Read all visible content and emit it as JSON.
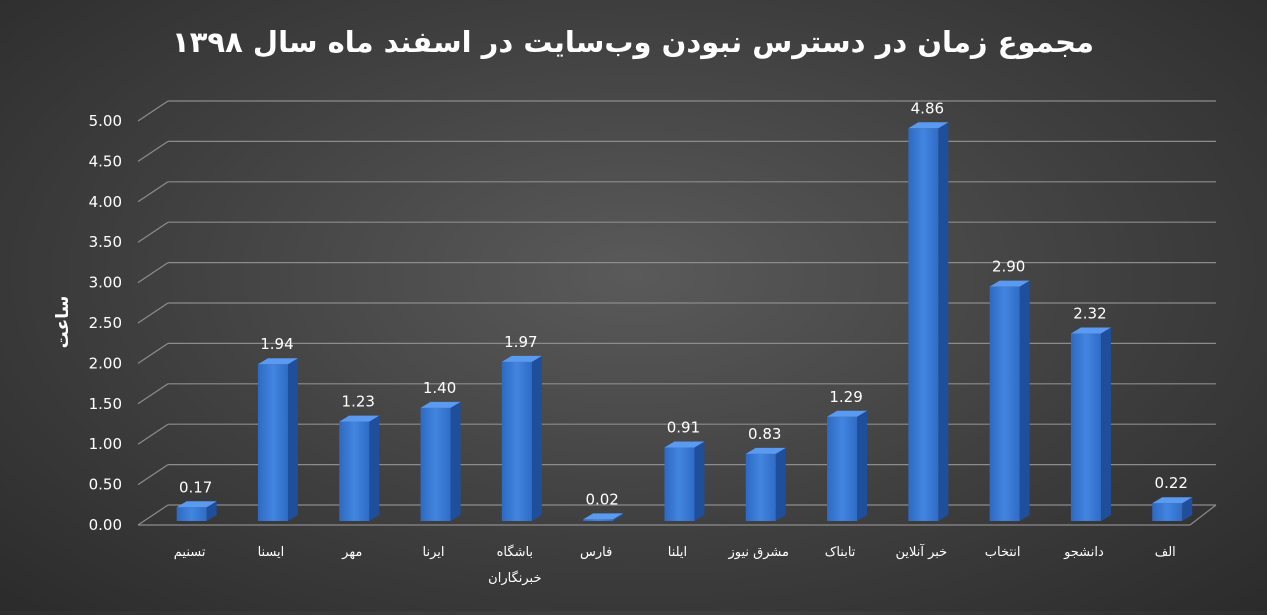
{
  "chart_data": {
    "type": "bar",
    "title": "مجموع زمان در دسترس نبودن وب‌سایت در اسفند ماه سال ۱۳۹۸",
    "ylabel": "ساعت",
    "xlabel": "",
    "ylim": [
      0,
      5
    ],
    "yticks": [
      "0.00",
      "0.50",
      "1.00",
      "1.50",
      "2.00",
      "2.50",
      "3.00",
      "3.50",
      "4.00",
      "4.50",
      "5.00"
    ],
    "grid": true,
    "style": "3d-column",
    "bar_color": "#3b7bd6",
    "categories": [
      [
        "تسنیم"
      ],
      [
        "ایسنا"
      ],
      [
        "مهر"
      ],
      [
        "ایرنا"
      ],
      [
        "باشگاه",
        "خبرنگاران"
      ],
      [
        "فارس"
      ],
      [
        "ایلنا"
      ],
      [
        "مشرق نیوز"
      ],
      [
        "تابناک"
      ],
      [
        "خبر آنلاین"
      ],
      [
        "انتخاب"
      ],
      [
        "دانشجو"
      ],
      [
        "الف"
      ]
    ],
    "values": [
      0.17,
      1.94,
      1.23,
      1.4,
      1.97,
      0.02,
      0.91,
      0.83,
      1.29,
      4.86,
      2.9,
      2.32,
      0.22
    ],
    "data_labels": [
      "0.17",
      "1.94",
      "1.23",
      "1.40",
      "1.97",
      "0.02",
      "0.91",
      "0.83",
      "1.29",
      "4.86",
      "2.90",
      "2.32",
      "0.22"
    ]
  }
}
